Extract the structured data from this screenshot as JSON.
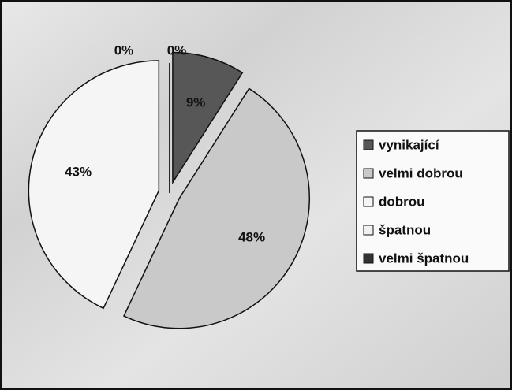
{
  "chart_data": {
    "type": "pie",
    "categories": [
      "vynikající",
      "velmi dobrou",
      "dobrou",
      "špatnou",
      "velmi špatnou"
    ],
    "values": [
      9,
      48,
      43,
      0,
      0
    ],
    "value_labels": [
      "9%",
      "48%",
      "43%",
      "0%",
      "0%"
    ],
    "colors": [
      "#575757",
      "#c9c9c9",
      "#f5f5f5",
      "#f0f0f0",
      "#333333"
    ],
    "legend": "right"
  }
}
